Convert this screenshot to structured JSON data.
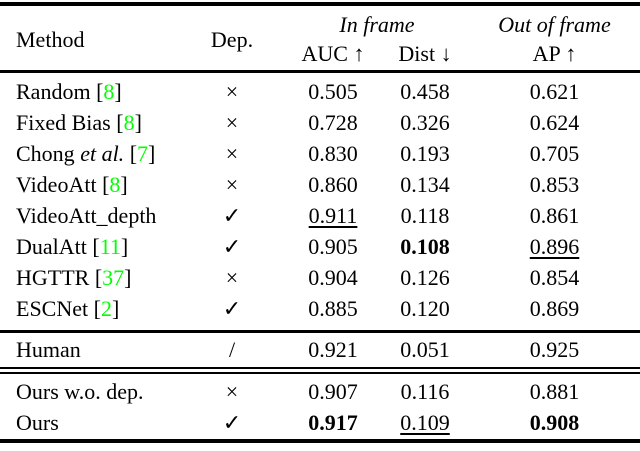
{
  "header": {
    "method": "Method",
    "dep": "Dep.",
    "in_frame": "In frame",
    "out_of_frame": "Out of frame",
    "auc": "AUC ↑",
    "dist": "Dist ↓",
    "ap": "AP ↑"
  },
  "citation_color": "#00ff00",
  "cite_brackets": [
    "[",
    "]"
  ],
  "sections": [
    {
      "rows": [
        {
          "name": "Random",
          "italic": "",
          "cite": "8",
          "dep": "×",
          "auc": "0.505",
          "auc_style": "",
          "dist": "0.458",
          "dist_style": "",
          "ap": "0.621",
          "ap_style": ""
        },
        {
          "name": "Fixed Bias",
          "italic": "",
          "cite": "8",
          "dep": "×",
          "auc": "0.728",
          "auc_style": "",
          "dist": "0.326",
          "dist_style": "",
          "ap": "0.624",
          "ap_style": ""
        },
        {
          "name": "Chong",
          "italic": "et al.",
          "cite": "7",
          "dep": "×",
          "auc": "0.830",
          "auc_style": "",
          "dist": "0.193",
          "dist_style": "",
          "ap": "0.705",
          "ap_style": ""
        },
        {
          "name": "VideoAtt",
          "italic": "",
          "cite": "8",
          "dep": "×",
          "auc": "0.860",
          "auc_style": "",
          "dist": "0.134",
          "dist_style": "",
          "ap": "0.853",
          "ap_style": ""
        },
        {
          "name": "VideoAtt_depth",
          "italic": "",
          "cite": "",
          "dep": "✓",
          "auc": "0.911",
          "auc_style": "underline",
          "dist": "0.118",
          "dist_style": "",
          "ap": "0.861",
          "ap_style": ""
        },
        {
          "name": "DualAtt",
          "italic": "",
          "cite": "11",
          "dep": "✓",
          "auc": "0.905",
          "auc_style": "",
          "dist": "0.108",
          "dist_style": "bold",
          "ap": "0.896",
          "ap_style": "underline"
        },
        {
          "name": "HGTTR",
          "italic": "",
          "cite": "37",
          "dep": "×",
          "auc": "0.904",
          "auc_style": "",
          "dist": "0.126",
          "dist_style": "",
          "ap": "0.854",
          "ap_style": ""
        },
        {
          "name": "ESCNet",
          "italic": "",
          "cite": "2",
          "dep": "✓",
          "auc": "0.885",
          "auc_style": "",
          "dist": "0.120",
          "dist_style": "",
          "ap": "0.869",
          "ap_style": ""
        }
      ]
    },
    {
      "rows": [
        {
          "name": "Human",
          "italic": "",
          "cite": "",
          "dep": "/",
          "auc": "0.921",
          "auc_style": "",
          "dist": "0.051",
          "dist_style": "",
          "ap": "0.925",
          "ap_style": ""
        }
      ]
    },
    {
      "rows": [
        {
          "name": "Ours w.o. dep.",
          "italic": "",
          "cite": "",
          "dep": "×",
          "auc": "0.907",
          "auc_style": "",
          "dist": "0.116",
          "dist_style": "",
          "ap": "0.881",
          "ap_style": ""
        },
        {
          "name": "Ours",
          "italic": "",
          "cite": "",
          "dep": "✓",
          "auc": "0.917",
          "auc_style": "bold",
          "dist": "0.109",
          "dist_style": "underline",
          "ap": "0.908",
          "ap_style": "bold"
        }
      ]
    }
  ]
}
